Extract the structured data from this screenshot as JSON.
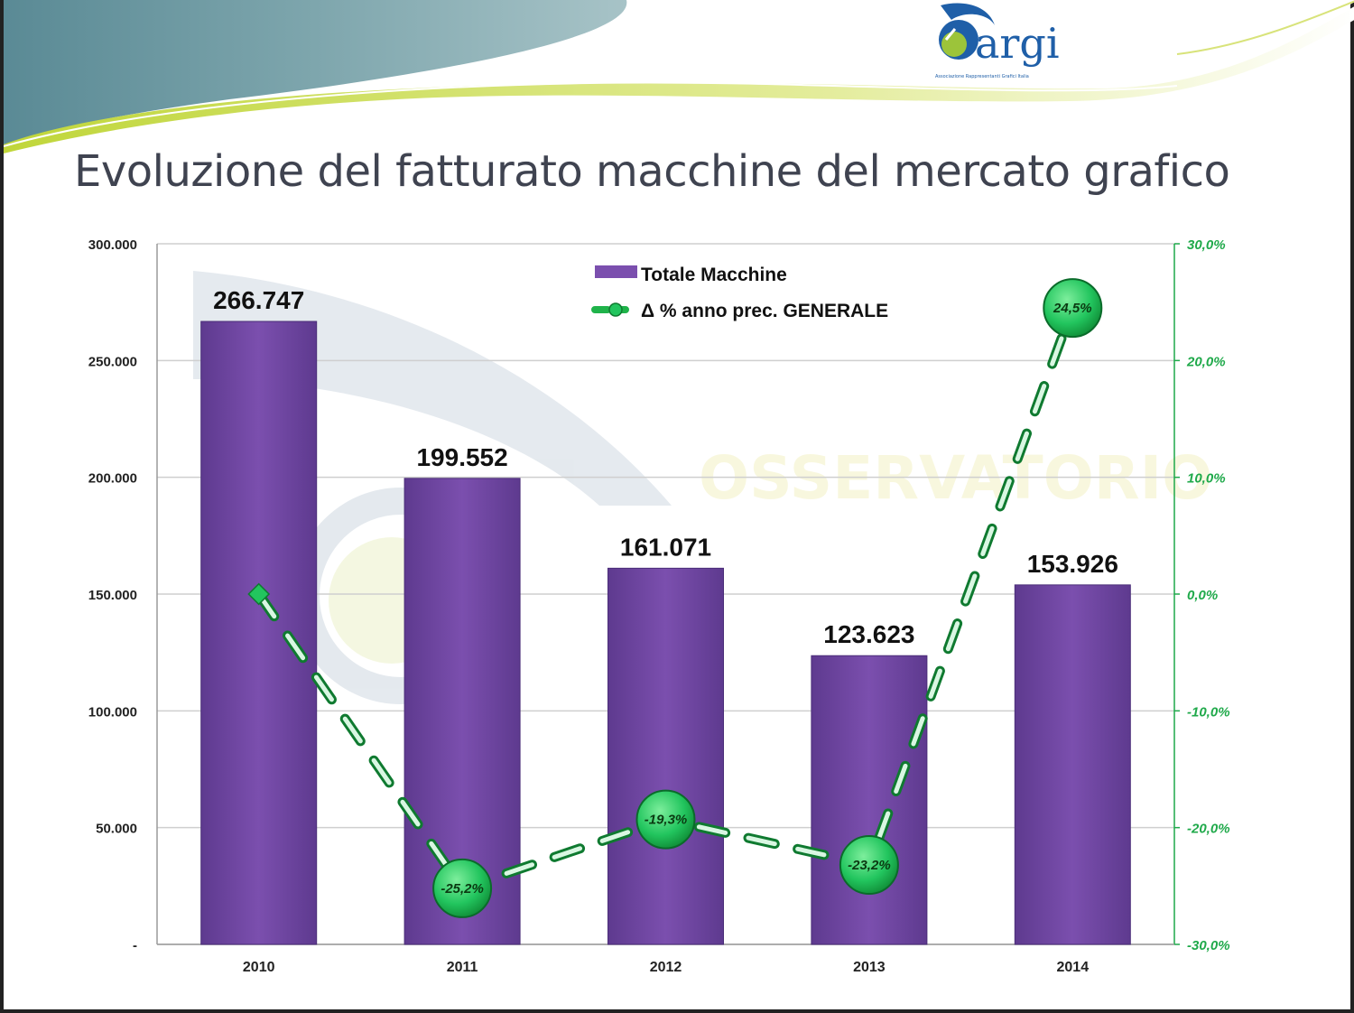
{
  "slide": {
    "title": "Evoluzione del fatturato macchine del mercato grafico",
    "logo_text": "argi",
    "logo_subtext": "Associazione Rappresentanti Grafici Italia"
  },
  "colors": {
    "bar": "#7b4fae",
    "bar_dark": "#5e3a8f",
    "line": "#1fb34a",
    "marker": "#22c55e",
    "header_teal": "#5f8e98",
    "header_lime": "#c7da3a"
  },
  "chart_data": {
    "type": "bar",
    "categories": [
      "2010",
      "2011",
      "2012",
      "2013",
      "2014"
    ],
    "series": [
      {
        "name": "Totale Macchine",
        "type": "bar",
        "axis": "left",
        "values": [
          266747,
          199552,
          161071,
          123623,
          153926
        ],
        "labels": [
          "266.747",
          "199.552",
          "161.071",
          "123.623",
          "153.926"
        ]
      },
      {
        "name": "Δ % anno prec. GENERALE",
        "type": "line",
        "axis": "right",
        "values": [
          0,
          -25.2,
          -19.3,
          -23.2,
          24.5
        ],
        "labels": [
          "",
          "-25,2%",
          "-19,3%",
          "-23,2%",
          "24,5%"
        ]
      }
    ],
    "y_left": {
      "range": [
        0,
        300000
      ],
      "ticks": [
        300000,
        250000,
        200000,
        150000,
        100000,
        50000,
        0
      ],
      "tick_labels": [
        "300.000",
        "250.000",
        "200.000",
        "150.000",
        "100.000",
        "50.000",
        "-"
      ]
    },
    "y_right": {
      "range": [
        -30,
        30
      ],
      "ticks": [
        30,
        20,
        10,
        0,
        -10,
        -20,
        -30
      ],
      "tick_labels": [
        "30,0%",
        "20,0%",
        "10,0%",
        "0,0%",
        "-10,0%",
        "-20,0%",
        "-30,0%"
      ]
    },
    "grid": true,
    "legend": "top-center",
    "watermark": "OSSERVATORIO"
  }
}
